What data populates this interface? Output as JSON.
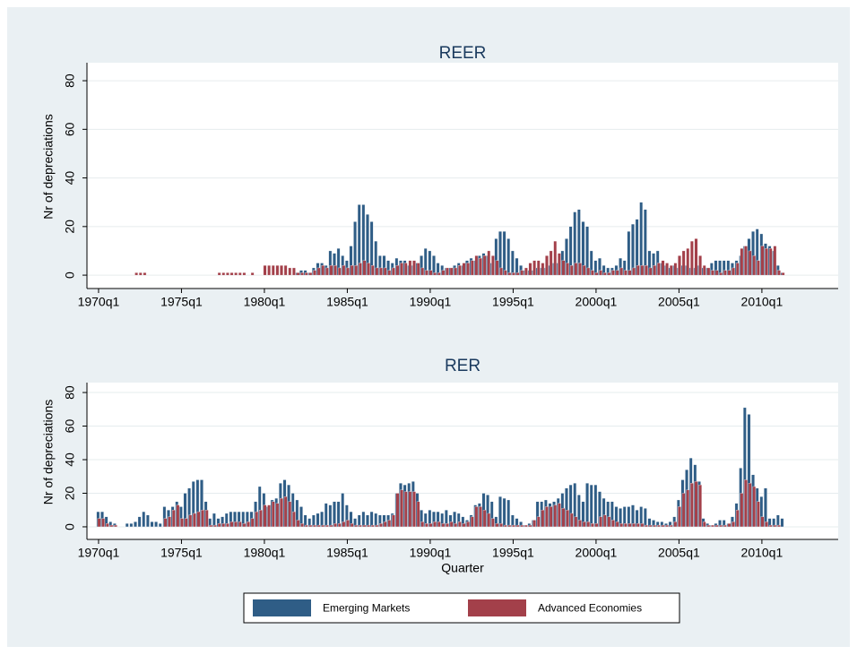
{
  "chart_data": [
    {
      "type": "bar",
      "title": "REER",
      "y_label": "Nr of depreciations",
      "x": [
        1970,
        1970.25,
        1970.5,
        1970.75,
        1971,
        1971.25,
        1971.5,
        1971.75,
        1972,
        1972.25,
        1972.5,
        1972.75,
        1973,
        1973.25,
        1973.5,
        1973.75,
        1974,
        1974.25,
        1974.5,
        1974.75,
        1975,
        1975.25,
        1975.5,
        1975.75,
        1976,
        1976.25,
        1976.5,
        1976.75,
        1977,
        1977.25,
        1977.5,
        1977.75,
        1978,
        1978.25,
        1978.5,
        1978.75,
        1979,
        1979.25,
        1979.5,
        1979.75,
        1980,
        1980.25,
        1980.5,
        1980.75,
        1981,
        1981.25,
        1981.5,
        1981.75,
        1982,
        1982.25,
        1982.5,
        1982.75,
        1983,
        1983.25,
        1983.5,
        1983.75,
        1984,
        1984.25,
        1984.5,
        1984.75,
        1985,
        1985.25,
        1985.5,
        1985.75,
        1986,
        1986.25,
        1986.5,
        1986.75,
        1987,
        1987.25,
        1987.5,
        1987.75,
        1988,
        1988.25,
        1988.5,
        1988.75,
        1989,
        1989.25,
        1989.5,
        1989.75,
        1990,
        1990.25,
        1990.5,
        1990.75,
        1991,
        1991.25,
        1991.5,
        1991.75,
        1992,
        1992.25,
        1992.5,
        1992.75,
        1993,
        1993.25,
        1993.5,
        1993.75,
        1994,
        1994.25,
        1994.5,
        1994.75,
        1995,
        1995.25,
        1995.5,
        1995.75,
        1996,
        1996.25,
        1996.5,
        1996.75,
        1997,
        1997.25,
        1997.5,
        1997.75,
        1998,
        1998.25,
        1998.5,
        1998.75,
        1999,
        1999.25,
        1999.5,
        1999.75,
        2000,
        2000.25,
        2000.5,
        2000.75,
        2001,
        2001.25,
        2001.5,
        2001.75,
        2002,
        2002.25,
        2002.5,
        2002.75,
        2003,
        2003.25,
        2003.5,
        2003.75,
        2004,
        2004.25,
        2004.5,
        2004.75,
        2005,
        2005.25,
        2005.5,
        2005.75,
        2006,
        2006.25,
        2006.5,
        2006.75,
        2007,
        2007.25,
        2007.5,
        2007.75,
        2008,
        2008.25,
        2008.5,
        2008.75,
        2009,
        2009.25,
        2009.5,
        2009.75,
        2010,
        2010.25,
        2010.5,
        2010.75,
        2011,
        2011.25
      ],
      "series": [
        {
          "color": "#2f5d86",
          "values": [
            null,
            null,
            null,
            null,
            null,
            null,
            null,
            null,
            null,
            null,
            null,
            null,
            null,
            null,
            null,
            null,
            null,
            null,
            null,
            null,
            null,
            null,
            null,
            null,
            null,
            null,
            null,
            null,
            null,
            null,
            null,
            null,
            null,
            null,
            null,
            null,
            null,
            null,
            null,
            null,
            null,
            null,
            null,
            null,
            null,
            null,
            null,
            null,
            1,
            2,
            2,
            1,
            3,
            5,
            5,
            4,
            10,
            9,
            11,
            8,
            6,
            12,
            22,
            29,
            29,
            25,
            22,
            14,
            8,
            8,
            6,
            5,
            7,
            6,
            6,
            4,
            4,
            5,
            8,
            11,
            10,
            8,
            5,
            4,
            3,
            3,
            4,
            5,
            4,
            6,
            7,
            6,
            8,
            9,
            8,
            5,
            15,
            18,
            18,
            15,
            10,
            7,
            4,
            2,
            2,
            2,
            3,
            3,
            3,
            4,
            5,
            5,
            10,
            15,
            20,
            26,
            27,
            22,
            20,
            10,
            6,
            7,
            4,
            3,
            3,
            4,
            7,
            6,
            18,
            21,
            23,
            30,
            27,
            10,
            9,
            10,
            5,
            4,
            3,
            4,
            3,
            4,
            4,
            3,
            3,
            4,
            3,
            3,
            5,
            6,
            6,
            6,
            6,
            5,
            6,
            8,
            12,
            15,
            18,
            19,
            17,
            13,
            12,
            10,
            4,
            1
          ]
        },
        {
          "color": "#a3404a",
          "values": [
            null,
            null,
            null,
            null,
            null,
            null,
            null,
            null,
            null,
            1,
            1,
            1,
            null,
            null,
            null,
            null,
            null,
            null,
            null,
            null,
            null,
            null,
            null,
            null,
            null,
            null,
            null,
            null,
            null,
            1,
            1,
            1,
            1,
            1,
            1,
            1,
            null,
            1,
            null,
            null,
            4,
            4,
            4,
            4,
            4,
            4,
            3,
            3,
            1,
            1,
            1,
            1,
            2,
            3,
            4,
            3,
            4,
            4,
            3,
            4,
            3,
            4,
            4,
            5,
            6,
            5,
            4,
            3,
            3,
            3,
            2,
            3,
            4,
            5,
            5,
            6,
            6,
            5,
            3,
            2,
            2,
            1,
            1,
            2,
            3,
            3,
            3,
            4,
            5,
            5,
            6,
            8,
            7,
            8,
            10,
            8,
            6,
            3,
            2,
            1,
            1,
            1,
            2,
            3,
            5,
            6,
            6,
            5,
            8,
            10,
            14,
            9,
            6,
            5,
            4,
            5,
            5,
            4,
            3,
            2,
            1,
            2,
            1,
            1,
            2,
            2,
            3,
            2,
            2,
            3,
            4,
            4,
            4,
            3,
            4,
            5,
            6,
            5,
            4,
            5,
            8,
            10,
            11,
            14,
            15,
            8,
            4,
            3,
            2,
            2,
            1,
            2,
            2,
            3,
            5,
            11,
            12,
            10,
            8,
            6,
            12,
            11,
            11,
            12,
            2,
            1
          ]
        }
      ],
      "xlim": [
        1969.3,
        2014.6
      ],
      "ylim": [
        -5.5,
        87.4
      ],
      "xticks": [
        {
          "value": 1970,
          "label": "1970q1"
        },
        {
          "value": 1975,
          "label": "1975q1"
        },
        {
          "value": 1980,
          "label": "1980q1"
        },
        {
          "value": 1985,
          "label": "1985q1"
        },
        {
          "value": 1990,
          "label": "1990q1"
        },
        {
          "value": 1995,
          "label": "1995q1"
        },
        {
          "value": 2000,
          "label": "2000q1"
        },
        {
          "value": 2005,
          "label": "2005q1"
        },
        {
          "value": 2010,
          "label": "2010q1"
        }
      ],
      "yticks": [
        0,
        20,
        40,
        60,
        80
      ],
      "grid": true
    },
    {
      "type": "bar",
      "title": "RER",
      "y_label": "Nr of depreciations",
      "x_label": "Quarter",
      "x": [
        1970,
        1970.25,
        1970.5,
        1970.75,
        1971,
        1971.25,
        1971.5,
        1971.75,
        1972,
        1972.25,
        1972.5,
        1972.75,
        1973,
        1973.25,
        1973.5,
        1973.75,
        1974,
        1974.25,
        1974.5,
        1974.75,
        1975,
        1975.25,
        1975.5,
        1975.75,
        1976,
        1976.25,
        1976.5,
        1976.75,
        1977,
        1977.25,
        1977.5,
        1977.75,
        1978,
        1978.25,
        1978.5,
        1978.75,
        1979,
        1979.25,
        1979.5,
        1979.75,
        1980,
        1980.25,
        1980.5,
        1980.75,
        1981,
        1981.25,
        1981.5,
        1981.75,
        1982,
        1982.25,
        1982.5,
        1982.75,
        1983,
        1983.25,
        1983.5,
        1983.75,
        1984,
        1984.25,
        1984.5,
        1984.75,
        1985,
        1985.25,
        1985.5,
        1985.75,
        1986,
        1986.25,
        1986.5,
        1986.75,
        1987,
        1987.25,
        1987.5,
        1987.75,
        1988,
        1988.25,
        1988.5,
        1988.75,
        1989,
        1989.25,
        1989.5,
        1989.75,
        1990,
        1990.25,
        1990.5,
        1990.75,
        1991,
        1991.25,
        1991.5,
        1991.75,
        1992,
        1992.25,
        1992.5,
        1992.75,
        1993,
        1993.25,
        1993.5,
        1993.75,
        1994,
        1994.25,
        1994.5,
        1994.75,
        1995,
        1995.25,
        1995.5,
        1995.75,
        1996,
        1996.25,
        1996.5,
        1996.75,
        1997,
        1997.25,
        1997.5,
        1997.75,
        1998,
        1998.25,
        1998.5,
        1998.75,
        1999,
        1999.25,
        1999.5,
        1999.75,
        2000,
        2000.25,
        2000.5,
        2000.75,
        2001,
        2001.25,
        2001.5,
        2001.75,
        2002,
        2002.25,
        2002.5,
        2002.75,
        2003,
        2003.25,
        2003.5,
        2003.75,
        2004,
        2004.25,
        2004.5,
        2004.75,
        2005,
        2005.25,
        2005.5,
        2005.75,
        2006,
        2006.25,
        2006.5,
        2006.75,
        2007,
        2007.25,
        2007.5,
        2007.75,
        2008,
        2008.25,
        2008.5,
        2008.75,
        2009,
        2009.25,
        2009.5,
        2009.75,
        2010,
        2010.25,
        2010.5,
        2010.75,
        2011,
        2011.25
      ],
      "series": [
        {
          "name": "Emerging Markets",
          "color": "#2f5d86",
          "values": [
            9,
            9,
            6,
            3,
            2,
            null,
            null,
            2,
            2,
            3,
            6,
            9,
            7,
            3,
            3,
            2,
            12,
            10,
            12,
            15,
            12,
            20,
            23,
            27,
            28,
            28,
            15,
            5,
            8,
            5,
            6,
            8,
            9,
            9,
            9,
            9,
            9,
            9,
            15,
            24,
            20,
            12,
            16,
            17,
            26,
            28,
            25,
            20,
            16,
            12,
            7,
            5,
            7,
            8,
            9,
            14,
            13,
            15,
            15,
            20,
            13,
            9,
            5,
            7,
            9,
            7,
            9,
            8,
            7,
            7,
            7,
            8,
            20,
            26,
            25,
            26,
            27,
            20,
            10,
            8,
            10,
            9,
            9,
            8,
            10,
            7,
            9,
            8,
            6,
            4,
            7,
            13,
            14,
            20,
            19,
            15,
            6,
            18,
            17,
            16,
            7,
            5,
            3,
            1,
            2,
            4,
            15,
            15,
            16,
            14,
            15,
            17,
            20,
            23,
            25,
            26,
            19,
            15,
            26,
            25,
            25,
            21,
            17,
            15,
            15,
            12,
            11,
            12,
            12,
            13,
            10,
            12,
            11,
            5,
            4,
            3,
            3,
            2,
            3,
            6,
            16,
            28,
            34,
            41,
            37,
            27,
            5,
            2,
            1,
            2,
            4,
            4,
            2,
            6,
            14,
            35,
            71,
            67,
            31,
            23,
            18,
            23,
            5,
            5,
            7,
            5
          ]
        },
        {
          "name": "Advanced Economies",
          "color": "#a3404a",
          "values": [
            5,
            5,
            2,
            1,
            1,
            null,
            null,
            null,
            null,
            null,
            null,
            null,
            null,
            null,
            null,
            null,
            5,
            6,
            10,
            13,
            5,
            5,
            7,
            8,
            9,
            10,
            10,
            1,
            1,
            2,
            2,
            2,
            3,
            3,
            3,
            2,
            3,
            5,
            9,
            10,
            13,
            13,
            15,
            14,
            17,
            18,
            15,
            9,
            4,
            2,
            1,
            1,
            1,
            1,
            1,
            1,
            1,
            2,
            2,
            3,
            4,
            2,
            1,
            1,
            1,
            1,
            1,
            1,
            2,
            3,
            4,
            7,
            20,
            22,
            21,
            21,
            21,
            15,
            3,
            2,
            2,
            3,
            3,
            2,
            2,
            3,
            2,
            3,
            2,
            3,
            6,
            12,
            12,
            10,
            8,
            5,
            2,
            2,
            1,
            1,
            1,
            1,
            1,
            1,
            1,
            4,
            6,
            10,
            12,
            12,
            13,
            14,
            11,
            10,
            8,
            6,
            4,
            3,
            3,
            2,
            2,
            6,
            7,
            6,
            4,
            3,
            2,
            2,
            2,
            2,
            2,
            2,
            1,
            1,
            1,
            1,
            1,
            1,
            1,
            3,
            12,
            20,
            22,
            26,
            27,
            25,
            3,
            1,
            1,
            1,
            1,
            1,
            2,
            3,
            10,
            20,
            28,
            26,
            24,
            15,
            6,
            3,
            1,
            1,
            1,
            null
          ]
        }
      ],
      "xlim": [
        1969.3,
        2014.6
      ],
      "ylim": [
        -7.5,
        85.9
      ],
      "xticks": [
        {
          "value": 1970,
          "label": "1970q1"
        },
        {
          "value": 1975,
          "label": "1975q1"
        },
        {
          "value": 1980,
          "label": "1980q1"
        },
        {
          "value": 1985,
          "label": "1985q1"
        },
        {
          "value": 1990,
          "label": "1990q1"
        },
        {
          "value": 1995,
          "label": "1995q1"
        },
        {
          "value": 2000,
          "label": "2000q1"
        },
        {
          "value": 2005,
          "label": "2005q1"
        },
        {
          "value": 2010,
          "label": "2010q1"
        }
      ],
      "yticks": [
        0,
        20,
        40,
        60,
        80
      ],
      "grid": true,
      "legend": "bottom"
    }
  ]
}
